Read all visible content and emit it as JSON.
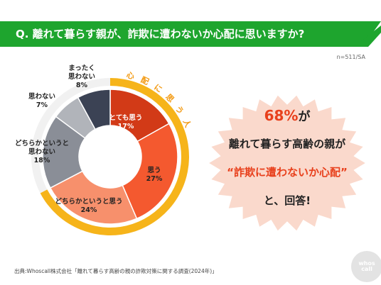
{
  "header": {
    "question": "Q. 離れて暮らす親が、詐欺に遭わないか心配に思いますか?",
    "sample": "n=511/SA"
  },
  "colors": {
    "banner_green": "#1ea52e",
    "worried_ring": "#f6b41a",
    "callout_bg": "#fad9cc",
    "accent_red": "#e8401c"
  },
  "chart_data": {
    "type": "pie",
    "style": "donut",
    "categories": [
      "とても思う",
      "思う",
      "どちらかというと思う",
      "どちらかというと思わない",
      "思わない",
      "まったく思わない"
    ],
    "values": [
      17,
      27,
      24,
      18,
      7,
      8
    ],
    "unit": "%",
    "colors": [
      "#d23a17",
      "#f4592f",
      "#f7906c",
      "#8a8e97",
      "#b1b4ba",
      "#3b4254"
    ],
    "group_label": "心配に思う人",
    "group_categories": [
      "とても思う",
      "思う",
      "どちらかというと思う"
    ],
    "labels": [
      {
        "lines": [
          "とても思う"
        ],
        "pct": "17%"
      },
      {
        "lines": [
          "思う"
        ],
        "pct": "27%"
      },
      {
        "lines": [
          "どちらかというと思う"
        ],
        "pct": "24%"
      },
      {
        "lines": [
          "どちらかというと",
          "思わない"
        ],
        "pct": "18%"
      },
      {
        "lines": [
          "思わない"
        ],
        "pct": "7%"
      },
      {
        "lines": [
          "まったく",
          "思わない"
        ],
        "pct": "8%"
      }
    ]
  },
  "callout": {
    "pct": "68%",
    "ga": "が",
    "line2": "離れて暮らす高齢の親が",
    "line3": "“詐欺に遭わないか心配”",
    "line4": "と、回答!"
  },
  "footer": {
    "source": "出典:Whoscall株式会社「離れて暮らす高齢の親の詐欺対策に関する調査(2024年)」",
    "logo_line1": "whos",
    "logo_line2": "call"
  }
}
